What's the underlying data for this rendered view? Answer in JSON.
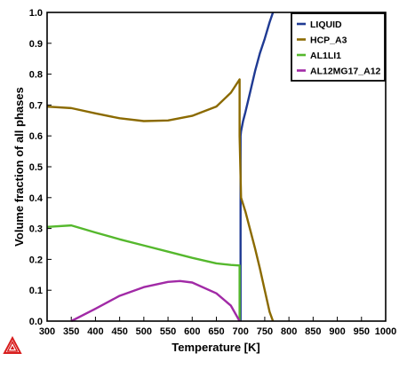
{
  "chart_data": {
    "type": "line",
    "xlabel": "Temperature [K]",
    "ylabel": "Volume fraction of all phases",
    "xlim": [
      300,
      1000
    ],
    "ylim": [
      0,
      1
    ],
    "xticks": [
      "300",
      "350",
      "400",
      "450",
      "500",
      "550",
      "600",
      "650",
      "700",
      "750",
      "800",
      "850",
      "900",
      "950",
      "1000"
    ],
    "yticks": [
      "0.0",
      "0.1",
      "0.2",
      "0.3",
      "0.4",
      "0.5",
      "0.6",
      "0.7",
      "0.8",
      "0.9",
      "1.0"
    ],
    "legend_position": "top-right",
    "grid": false,
    "series": [
      {
        "name": "LIQUID",
        "color": "#1f3a93",
        "x": [
          700,
          700,
          701,
          705,
          710,
          715,
          720,
          730,
          740,
          750,
          760,
          767
        ],
        "y": [
          0.0,
          0.6,
          0.615,
          0.647,
          0.677,
          0.71,
          0.743,
          0.81,
          0.868,
          0.915,
          0.968,
          1.0
        ]
      },
      {
        "name": "HCP_A3",
        "color": "#8b6a00",
        "x": [
          300,
          350,
          400,
          450,
          500,
          550,
          600,
          650,
          680,
          698,
          698,
          701,
          710,
          720,
          730,
          740,
          750,
          760,
          767
        ],
        "y": [
          0.695,
          0.69,
          0.673,
          0.657,
          0.648,
          0.65,
          0.665,
          0.695,
          0.74,
          0.783,
          0.6,
          0.4,
          0.355,
          0.295,
          0.235,
          0.17,
          0.1,
          0.03,
          0.0
        ]
      },
      {
        "name": "AL1LI1",
        "color": "#55b82d",
        "x": [
          300,
          350,
          400,
          450,
          500,
          550,
          600,
          650,
          680,
          698,
          698
        ],
        "y": [
          0.305,
          0.31,
          0.287,
          0.265,
          0.245,
          0.225,
          0.205,
          0.187,
          0.182,
          0.18,
          0.0
        ]
      },
      {
        "name": "AL12MG17_A12",
        "color": "#a12aa6",
        "x": [
          350,
          400,
          450,
          500,
          550,
          575,
          600,
          650,
          680,
          698
        ],
        "y": [
          0.0,
          0.04,
          0.082,
          0.11,
          0.127,
          0.13,
          0.125,
          0.09,
          0.05,
          0.0
        ]
      }
    ]
  }
}
